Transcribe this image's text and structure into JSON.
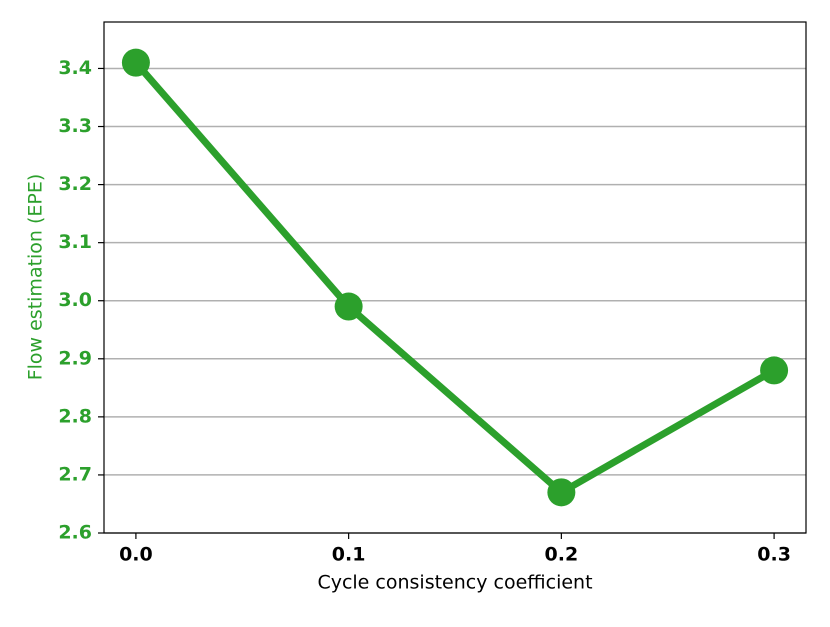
{
  "chart_data": {
    "type": "line",
    "xlabel": "Cycle consistency coefficient",
    "ylabel": "Flow estimation (EPE)",
    "series": [
      {
        "color": "#2ca02c",
        "x": [
          0.0,
          0.1,
          0.2,
          0.3
        ],
        "values": [
          3.41,
          2.99,
          2.67,
          2.88
        ]
      }
    ],
    "xlim": [
      -0.015,
      0.315
    ],
    "xticks": [
      {
        "value": 0,
        "label": "0.0"
      },
      0.1,
      0.2,
      0.3
    ],
    "ylim": [
      2.6,
      3.48
    ],
    "yticks": [
      2.6,
      2.7,
      2.8,
      2.9,
      {
        "value": 3,
        "label": "3.0"
      },
      3.1,
      3.2,
      3.3,
      3.4
    ],
    "grid": true
  }
}
